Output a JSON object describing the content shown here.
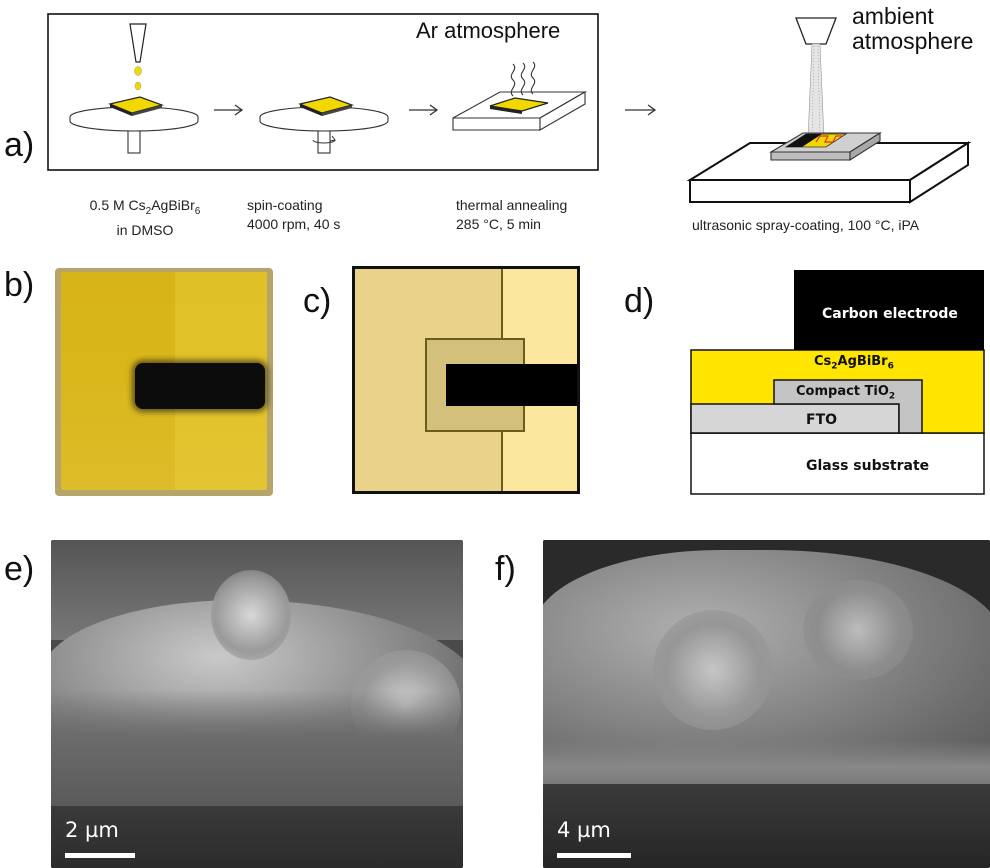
{
  "panels": {
    "a": {
      "label": "a)",
      "box_title": "Ar atmosphere",
      "ambient_line1": "ambient",
      "ambient_line2": "atmosphere",
      "step1_line1": "0.5 M Cs",
      "step1_sub1": "2",
      "step1_mid": "AgBiBr",
      "step1_sub2": "6",
      "step1_line2": "in DMSO",
      "step2_line1": "spin-coating",
      "step2_line2": "4000 rpm, 40 s",
      "step3_line1": "thermal annealing",
      "step3_line2": "285 °C, 5 min",
      "step4": "ultrasonic spray-coating, 100 °C, iPA"
    },
    "b": {
      "label": "b)"
    },
    "c": {
      "label": "c)"
    },
    "d": {
      "label": "d)",
      "carbon": "Carbon electrode",
      "perov_main": "Cs",
      "perov_sub1": "2",
      "perov_mid": "AgBiBr",
      "perov_sub2": "6",
      "tio2_main": "Compact TiO",
      "tio2_sub": "2",
      "fto": "FTO",
      "glass": "Glass substrate"
    },
    "e": {
      "label": "e)",
      "scale": "2 µm"
    },
    "f": {
      "label": "f)",
      "scale": "4 µm"
    }
  },
  "colors": {
    "yellow": "#f6e20a",
    "sample_yellow": "#d9b516",
    "light_yellow": "#f8e59a",
    "tan": "#e9d38a",
    "dark_tan": "#d2bd6e",
    "gray_layer": "#cfcfcf",
    "black": "#000000"
  }
}
